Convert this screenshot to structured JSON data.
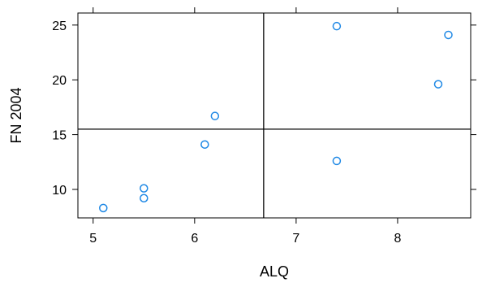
{
  "chart_data": {
    "type": "scatter",
    "title": "",
    "xlabel": "ALQ",
    "ylabel": "FN 2004",
    "xlim": [
      4.85,
      8.72
    ],
    "ylim": [
      7.4,
      26.1
    ],
    "x_ticks": [
      5,
      6,
      7,
      8
    ],
    "y_ticks": [
      10,
      15,
      20,
      25
    ],
    "x_tick_labels": [
      "5",
      "6",
      "7",
      "8"
    ],
    "y_tick_labels": [
      "10",
      "15",
      "20",
      "25"
    ],
    "grid": false,
    "legend": "none",
    "reference_lines": {
      "vertical_x": 6.68,
      "horizontal_y": 15.5
    },
    "marker_color": "#1E88E5",
    "axis_color": "#000000",
    "points": [
      {
        "x": 5.1,
        "y": 8.3
      },
      {
        "x": 5.5,
        "y": 9.2
      },
      {
        "x": 5.5,
        "y": 10.1
      },
      {
        "x": 6.1,
        "y": 14.1
      },
      {
        "x": 6.2,
        "y": 16.7
      },
      {
        "x": 7.4,
        "y": 12.6
      },
      {
        "x": 7.4,
        "y": 24.9
      },
      {
        "x": 8.4,
        "y": 19.6
      },
      {
        "x": 8.5,
        "y": 24.1
      }
    ]
  }
}
